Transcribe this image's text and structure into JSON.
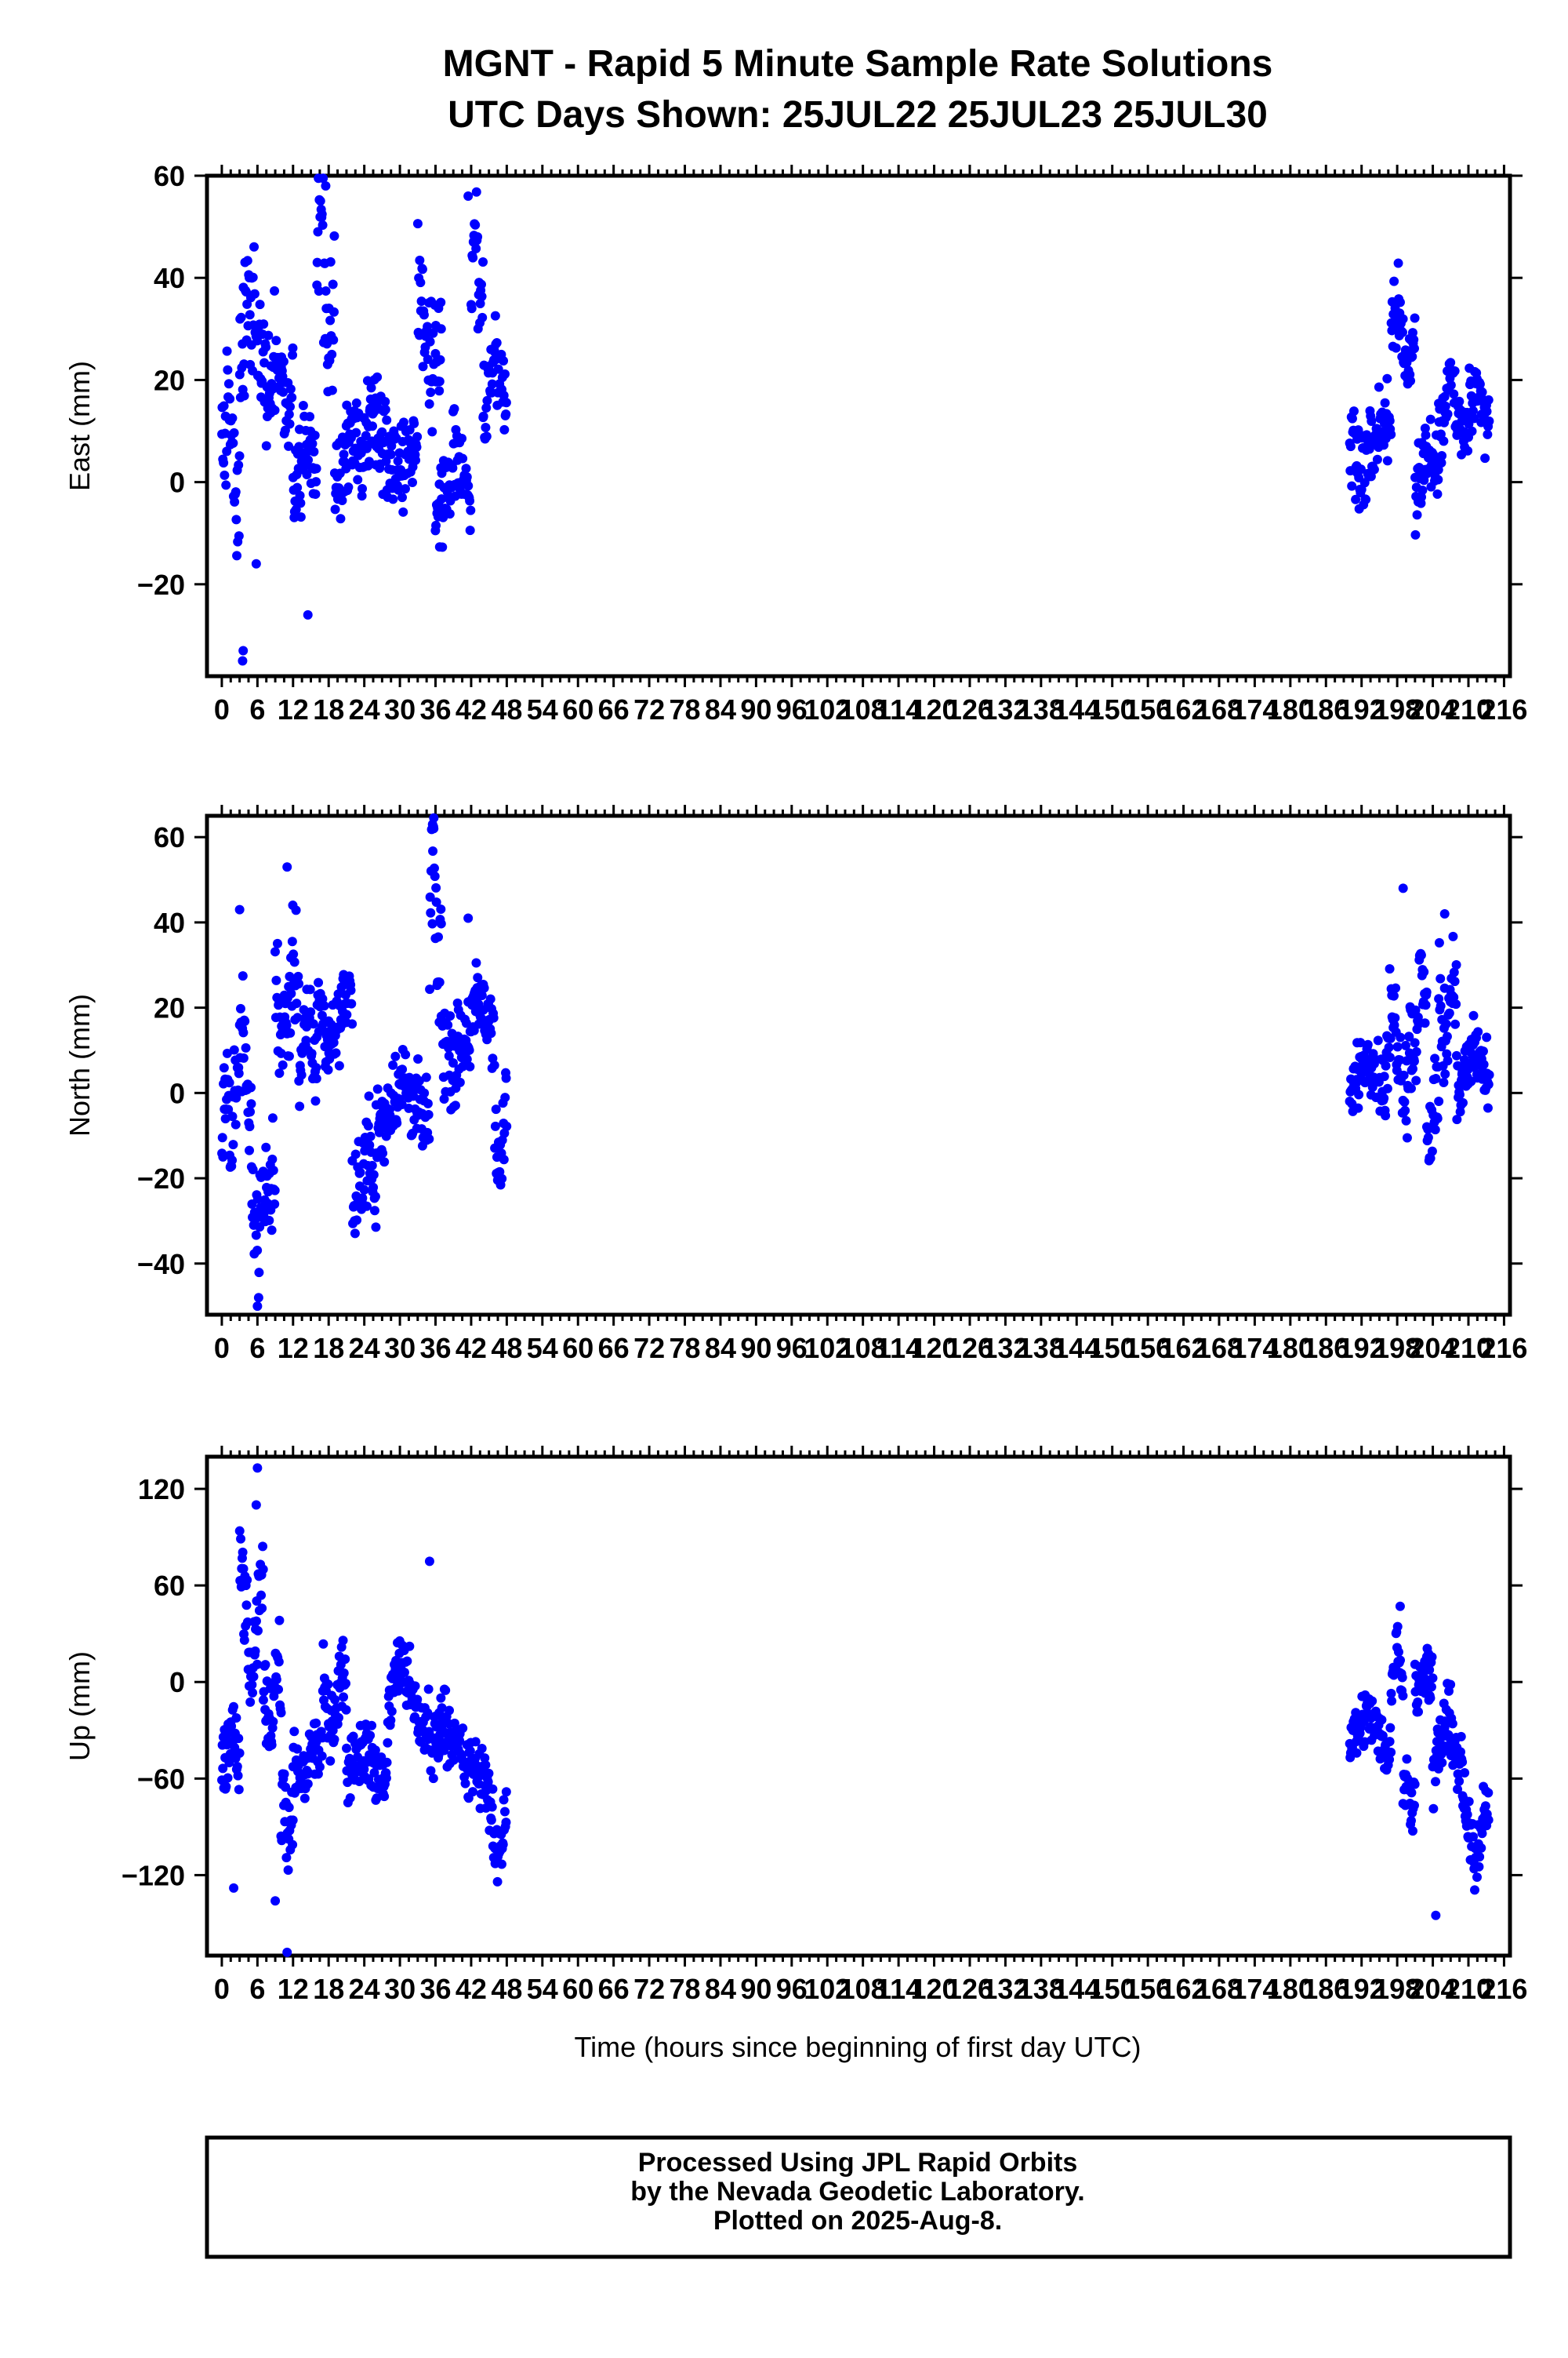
{
  "header": {
    "title_line1": "MGNT - Rapid 5 Minute Sample Rate Solutions",
    "title_line2": "UTC Days Shown:  25JUL22 25JUL23 25JUL30"
  },
  "footer": {
    "line1": "Processed Using JPL Rapid Orbits",
    "line2": "by the Nevada Geodetic Laboratory.",
    "line3": "Plotted on 2025-Aug-8."
  },
  "colors": {
    "points": "#0000ff",
    "frame": "#000000"
  },
  "x_tick_labels": [
    "0",
    "6",
    "12",
    "18",
    "24",
    "30",
    "36",
    "42",
    "48",
    "54",
    "60",
    "66",
    "72",
    "78",
    "84",
    "90",
    "96",
    "102",
    "108",
    "114",
    "120",
    "126",
    "132",
    "138",
    "144",
    "150",
    "156",
    "162",
    "168",
    "174",
    "180",
    "186",
    "192",
    "198",
    "204",
    "210",
    "216"
  ],
  "chart_data": [
    {
      "type": "scatter",
      "ylabel": "East (mm)",
      "xlabel": "",
      "xlim": [
        -2.5,
        217
      ],
      "ylim": [
        -38,
        60
      ],
      "yticks": [
        -20,
        0,
        20,
        40,
        60
      ],
      "ytick_labels": [
        "−20",
        "0",
        "20",
        "40",
        "60"
      ],
      "series": [
        {
          "segments": [
            {
              "x0": 0,
              "x1": 3,
              "step": 0.09,
              "base": 5,
              "amp": 8,
              "noise": 9
            },
            {
              "x0": 3,
              "x1": 9,
              "step": 0.09,
              "base": 27,
              "amp": 9,
              "noise": 10
            },
            {
              "x0": 9,
              "x1": 12,
              "step": 0.09,
              "base": 20,
              "amp": 6,
              "noise": 7
            },
            {
              "x0": 12,
              "x1": 16,
              "step": 0.09,
              "base": 3,
              "amp": 4,
              "noise": 7
            },
            {
              "x0": 16,
              "x1": 19,
              "step": 0.09,
              "base": 38,
              "amp": 14,
              "noise": 10
            },
            {
              "x0": 19,
              "x1": 24,
              "step": 0.09,
              "base": 5,
              "amp": 4,
              "noise": 6
            },
            {
              "x0": 24,
              "x1": 33,
              "step": 0.09,
              "base": 8,
              "amp": 4,
              "noise": 7
            },
            {
              "x0": 33,
              "x1": 37,
              "step": 0.09,
              "base": 28,
              "amp": 10,
              "noise": 9
            },
            {
              "x0": 36,
              "x1": 42,
              "step": 0.09,
              "base": 0,
              "amp": 5,
              "noise": 6
            },
            {
              "x0": 42,
              "x1": 44,
              "step": 0.09,
              "base": 42,
              "amp": 9,
              "noise": 8
            },
            {
              "x0": 44,
              "x1": 48,
              "step": 0.09,
              "base": 20,
              "amp": 5,
              "noise": 6
            },
            {
              "x0": 190,
              "x1": 197,
              "step": 0.09,
              "base": 8,
              "amp": 4,
              "noise": 6
            },
            {
              "x0": 197,
              "x1": 201,
              "step": 0.09,
              "base": 29,
              "amp": 6,
              "noise": 6
            },
            {
              "x0": 201,
              "x1": 205,
              "step": 0.09,
              "base": 3,
              "amp": 4,
              "noise": 6
            },
            {
              "x0": 205,
              "x1": 208,
              "step": 0.09,
              "base": 16,
              "amp": 4,
              "noise": 6
            },
            {
              "x0": 208,
              "x1": 213.5,
              "step": 0.09,
              "base": 13,
              "amp": 3,
              "noise": 5
            }
          ],
          "extra": [
            [
              3.5,
              -35
            ],
            [
              3.6,
              -33
            ],
            [
              5.8,
              -16
            ],
            [
              14.5,
              -26
            ],
            [
              17.5,
              58
            ],
            [
              41.5,
              56
            ]
          ]
        }
      ]
    },
    {
      "type": "scatter",
      "ylabel": "North (mm)",
      "xlabel": "",
      "xlim": [
        -2.5,
        217
      ],
      "ylim": [
        -52,
        65
      ],
      "yticks": [
        -40,
        -20,
        0,
        20,
        40,
        60
      ],
      "ytick_labels": [
        "−40",
        "−20",
        "0",
        "20",
        "40",
        "60"
      ],
      "series": [
        {
          "segments": [
            {
              "x0": 0,
              "x1": 2,
              "step": 0.09,
              "base": -5,
              "amp": 8,
              "noise": 8
            },
            {
              "x0": 2,
              "x1": 5,
              "step": 0.09,
              "base": 5,
              "amp": 10,
              "noise": 9
            },
            {
              "x0": 5,
              "x1": 9,
              "step": 0.09,
              "base": -25,
              "amp": 6,
              "noise": 8
            },
            {
              "x0": 9,
              "x1": 13,
              "step": 0.09,
              "base": 22,
              "amp": 7,
              "noise": 9
            },
            {
              "x0": 13,
              "x1": 16,
              "step": 0.09,
              "base": 10,
              "amp": 5,
              "noise": 7
            },
            {
              "x0": 16,
              "x1": 22,
              "step": 0.09,
              "base": 18,
              "amp": 6,
              "noise": 7
            },
            {
              "x0": 22,
              "x1": 26,
              "step": 0.09,
              "base": -20,
              "amp": 8,
              "noise": 8
            },
            {
              "x0": 26,
              "x1": 35,
              "step": 0.09,
              "base": -3,
              "amp": 5,
              "noise": 7
            },
            {
              "x0": 35,
              "x1": 37,
              "step": 0.09,
              "base": 40,
              "amp": 12,
              "noise": 10
            },
            {
              "x0": 37,
              "x1": 46,
              "step": 0.09,
              "base": 14,
              "amp": 6,
              "noise": 8
            },
            {
              "x0": 46,
              "x1": 48,
              "step": 0.09,
              "base": -12,
              "amp": 8,
              "noise": 8
            },
            {
              "x0": 190,
              "x1": 196,
              "step": 0.09,
              "base": 5,
              "amp": 4,
              "noise": 5
            },
            {
              "x0": 196,
              "x1": 200,
              "step": 0.09,
              "base": 10,
              "amp": 8,
              "noise": 8
            },
            {
              "x0": 200,
              "x1": 203,
              "step": 0.09,
              "base": 18,
              "amp": 8,
              "noise": 8
            },
            {
              "x0": 203,
              "x1": 205,
              "step": 0.09,
              "base": -5,
              "amp": 6,
              "noise": 8
            },
            {
              "x0": 205,
              "x1": 208,
              "step": 0.09,
              "base": 20,
              "amp": 8,
              "noise": 8
            },
            {
              "x0": 208,
              "x1": 213.5,
              "step": 0.09,
              "base": 5,
              "amp": 5,
              "noise": 6
            }
          ],
          "extra": [
            [
              3,
              43
            ],
            [
              6,
              -50
            ],
            [
              6.2,
              -48
            ],
            [
              11,
              53
            ],
            [
              35.5,
              63
            ],
            [
              35.7,
              62
            ],
            [
              41.5,
              41
            ],
            [
              199,
              48
            ],
            [
              206,
              42
            ]
          ]
        }
      ]
    },
    {
      "type": "scatter",
      "ylabel": "Up (mm)",
      "xlabel": "Time (hours since beginning of first day UTC)",
      "xlim": [
        -2.5,
        217
      ],
      "ylim": [
        -170,
        140
      ],
      "yticks": [
        -120,
        -60,
        0,
        60,
        120
      ],
      "ytick_labels": [
        "−120",
        "−60",
        "0",
        "60",
        "120"
      ],
      "series": [
        {
          "segments": [
            {
              "x0": 0,
              "x1": 3,
              "step": 0.09,
              "base": -45,
              "amp": 15,
              "noise": 20
            },
            {
              "x0": 3,
              "x1": 7,
              "step": 0.09,
              "base": 40,
              "amp": 35,
              "noise": 20
            },
            {
              "x0": 7,
              "x1": 10,
              "step": 0.09,
              "base": -10,
              "amp": 15,
              "noise": 18
            },
            {
              "x0": 10,
              "x1": 12,
              "step": 0.09,
              "base": -90,
              "amp": 15,
              "noise": 20
            },
            {
              "x0": 12,
              "x1": 17,
              "step": 0.09,
              "base": -50,
              "amp": 10,
              "noise": 15
            },
            {
              "x0": 17,
              "x1": 21,
              "step": 0.09,
              "base": -10,
              "amp": 15,
              "noise": 15
            },
            {
              "x0": 21,
              "x1": 28,
              "step": 0.09,
              "base": -50,
              "amp": 10,
              "noise": 15
            },
            {
              "x0": 28,
              "x1": 35,
              "step": 0.09,
              "base": -10,
              "amp": 20,
              "noise": 15
            },
            {
              "x0": 35,
              "x1": 43,
              "step": 0.09,
              "base": -40,
              "amp": 15,
              "noise": 15
            },
            {
              "x0": 43,
              "x1": 48,
              "step": 0.09,
              "base": -80,
              "amp": 25,
              "noise": 15
            },
            {
              "x0": 190,
              "x1": 197,
              "step": 0.09,
              "base": -30,
              "amp": 10,
              "noise": 12
            },
            {
              "x0": 197,
              "x1": 199,
              "step": 0.09,
              "base": 10,
              "amp": 15,
              "noise": 12
            },
            {
              "x0": 199,
              "x1": 201,
              "step": 0.09,
              "base": -70,
              "amp": 10,
              "noise": 15
            },
            {
              "x0": 201,
              "x1": 204,
              "step": 0.09,
              "base": 0,
              "amp": 10,
              "noise": 12
            },
            {
              "x0": 204,
              "x1": 209,
              "step": 0.09,
              "base": -40,
              "amp": 15,
              "noise": 15
            },
            {
              "x0": 209,
              "x1": 213.5,
              "step": 0.09,
              "base": -90,
              "amp": 20,
              "noise": 12
            }
          ],
          "extra": [
            [
              6,
              133
            ],
            [
              5.8,
              110
            ],
            [
              11,
              -168
            ],
            [
              9,
              -136
            ],
            [
              2,
              -128
            ],
            [
              35,
              75
            ],
            [
              204.5,
              -145
            ],
            [
              198.5,
              47
            ]
          ]
        }
      ]
    }
  ]
}
